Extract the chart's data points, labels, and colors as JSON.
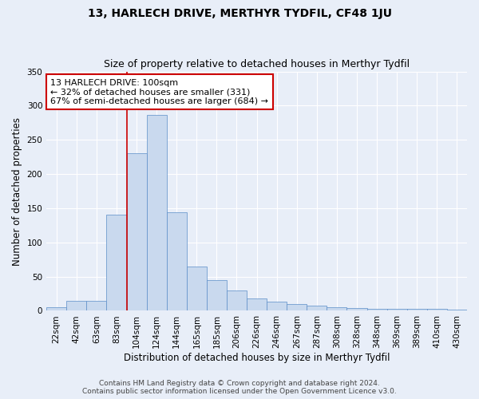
{
  "title": "13, HARLECH DRIVE, MERTHYR TYDFIL, CF48 1JU",
  "subtitle": "Size of property relative to detached houses in Merthyr Tydfil",
  "xlabel": "Distribution of detached houses by size in Merthyr Tydfil",
  "ylabel": "Number of detached properties",
  "categories": [
    "22sqm",
    "42sqm",
    "63sqm",
    "83sqm",
    "104sqm",
    "124sqm",
    "144sqm",
    "165sqm",
    "185sqm",
    "206sqm",
    "226sqm",
    "246sqm",
    "267sqm",
    "287sqm",
    "308sqm",
    "328sqm",
    "348sqm",
    "369sqm",
    "389sqm",
    "410sqm",
    "430sqm"
  ],
  "bar_values": [
    5,
    14,
    14,
    140,
    230,
    286,
    144,
    65,
    45,
    30,
    18,
    13,
    10,
    7,
    5,
    4,
    3,
    3,
    3,
    3,
    2
  ],
  "bar_color": "#c9d9ee",
  "bar_edge_color": "#5b8dc8",
  "vline_index": 4,
  "vline_color": "#cc0000",
  "annotation_text": "13 HARLECH DRIVE: 100sqm\n← 32% of detached houses are smaller (331)\n67% of semi-detached houses are larger (684) →",
  "annotation_box_facecolor": "#ffffff",
  "annotation_box_edgecolor": "#cc0000",
  "ylim": [
    0,
    350
  ],
  "yticks": [
    0,
    50,
    100,
    150,
    200,
    250,
    300,
    350
  ],
  "footer": "Contains HM Land Registry data © Crown copyright and database right 2024.\nContains public sector information licensed under the Open Government Licence v3.0.",
  "bg_color": "#e8eef8",
  "plot_bg_color": "#e8eef8",
  "grid_color": "#ffffff",
  "title_fontsize": 10,
  "subtitle_fontsize": 9,
  "xlabel_fontsize": 8.5,
  "ylabel_fontsize": 8.5,
  "tick_fontsize": 7.5,
  "annotation_fontsize": 8,
  "footer_fontsize": 6.5
}
